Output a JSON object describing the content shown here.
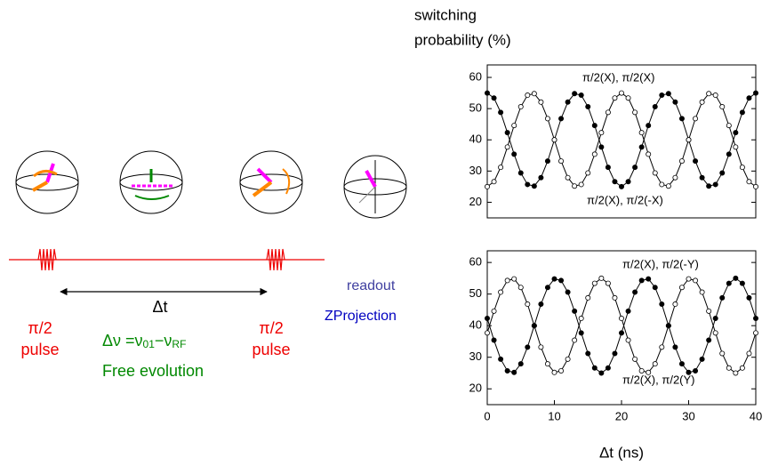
{
  "diagram": {
    "left_pulse": [
      "π/2",
      "pulse"
    ],
    "delay": "Δt",
    "detuning": [
      "Δν =ν",
      "01",
      "−ν",
      "RF"
    ],
    "free_evolution": "Free evolution",
    "right_pulse": [
      "π/2",
      "pulse"
    ],
    "readout": "readout",
    "projection": "ZProjection"
  },
  "chart_data": [
    {
      "type": "line",
      "ylabel": [
        "switching",
        "probability (%)"
      ],
      "x": [
        0,
        1,
        2,
        3,
        4,
        5,
        6,
        7,
        8,
        9,
        10,
        11,
        12,
        13,
        14,
        15,
        16,
        17,
        18,
        19,
        20,
        21,
        22,
        23,
        24,
        25,
        26,
        27,
        28,
        29,
        30,
        31,
        32,
        33,
        34,
        35,
        36,
        37,
        38,
        39,
        40
      ],
      "xlim": [
        0,
        40
      ],
      "ylim": [
        15,
        64
      ],
      "yticks": [
        20,
        30,
        40,
        50,
        60
      ],
      "series": [
        {
          "name": "π/2(X), π/2(X)",
          "color": "#000000",
          "marker": "filled",
          "values": [
            55,
            53.4,
            48.8,
            42.3,
            35.4,
            29.4,
            25.7,
            25.2,
            27.9,
            33.2,
            40,
            46.8,
            52.1,
            54.8,
            54.3,
            50.6,
            44.6,
            37.7,
            31.2,
            26.6,
            25,
            26.6,
            31.2,
            37.7,
            44.6,
            50.6,
            54.3,
            54.8,
            52.1,
            46.8,
            40,
            33.2,
            27.9,
            25.2,
            25.7,
            29.4,
            35.4,
            42.3,
            48.8,
            53.4,
            55
          ]
        },
        {
          "name": "π/2(X), π/2(-X)",
          "color": "#000000",
          "marker": "open",
          "values": [
            25,
            26.6,
            31.2,
            37.7,
            44.6,
            50.6,
            54.3,
            54.8,
            52.1,
            46.8,
            40,
            33.2,
            27.9,
            25.2,
            25.7,
            29.4,
            35.4,
            42.3,
            48.8,
            53.4,
            55,
            53.4,
            48.8,
            42.3,
            35.4,
            29.4,
            25.7,
            25.2,
            27.9,
            33.2,
            40,
            46.8,
            52.1,
            54.8,
            54.3,
            50.6,
            44.6,
            37.7,
            31.2,
            26.6,
            25
          ]
        }
      ]
    },
    {
      "type": "line",
      "xlabel": "Δt (ns)",
      "x": [
        0,
        1,
        2,
        3,
        4,
        5,
        6,
        7,
        8,
        9,
        10,
        11,
        12,
        13,
        14,
        15,
        16,
        17,
        18,
        19,
        20,
        21,
        22,
        23,
        24,
        25,
        26,
        27,
        28,
        29,
        30,
        31,
        32,
        33,
        34,
        35,
        36,
        37,
        38,
        39,
        40
      ],
      "xlim": [
        0,
        40
      ],
      "ylim": [
        15,
        63.7
      ],
      "xticks": [
        0,
        10,
        20,
        30,
        40
      ],
      "yticks": [
        20,
        30,
        40,
        50,
        60
      ],
      "series": [
        {
          "name": "π/2(X), π/2(-Y)",
          "color": "#000000",
          "marker": "open",
          "values": [
            37.7,
            44.6,
            50.6,
            54.3,
            54.8,
            52.1,
            46.8,
            40,
            33.2,
            27.9,
            25.2,
            25.7,
            29.4,
            35.4,
            42.3,
            48.8,
            53.4,
            55,
            53.4,
            48.8,
            42.3,
            35.4,
            29.4,
            25.7,
            25.2,
            27.9,
            33.2,
            40,
            46.8,
            52.1,
            54.8,
            54.3,
            50.6,
            44.6,
            37.7,
            31.2,
            26.6,
            25,
            26.6,
            31.2,
            37.7
          ]
        },
        {
          "name": "π/2(X), π/2(Y)",
          "color": "#000000",
          "marker": "filled",
          "values": [
            42.3,
            35.4,
            29.4,
            25.7,
            25.2,
            27.9,
            33.2,
            40,
            46.8,
            52.1,
            54.8,
            54.3,
            50.6,
            44.6,
            37.7,
            31.2,
            26.6,
            25,
            26.6,
            31.2,
            37.7,
            44.6,
            50.6,
            54.3,
            54.8,
            52.1,
            46.8,
            40,
            33.2,
            27.9,
            25.2,
            25.7,
            29.4,
            35.4,
            42.3,
            48.8,
            53.4,
            55,
            53.4,
            48.8,
            42.3
          ]
        }
      ]
    }
  ]
}
